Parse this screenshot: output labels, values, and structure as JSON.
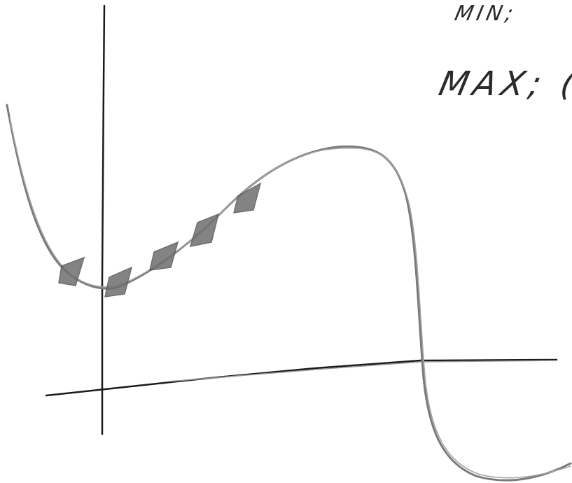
{
  "labels": {
    "min": "MIN;",
    "max": "MAX; ("
  },
  "colors": {
    "axis": "#1a1a1a",
    "curve": "#8a8a8a",
    "highlight": "#6e6e6e",
    "background": "#ffffff"
  }
}
